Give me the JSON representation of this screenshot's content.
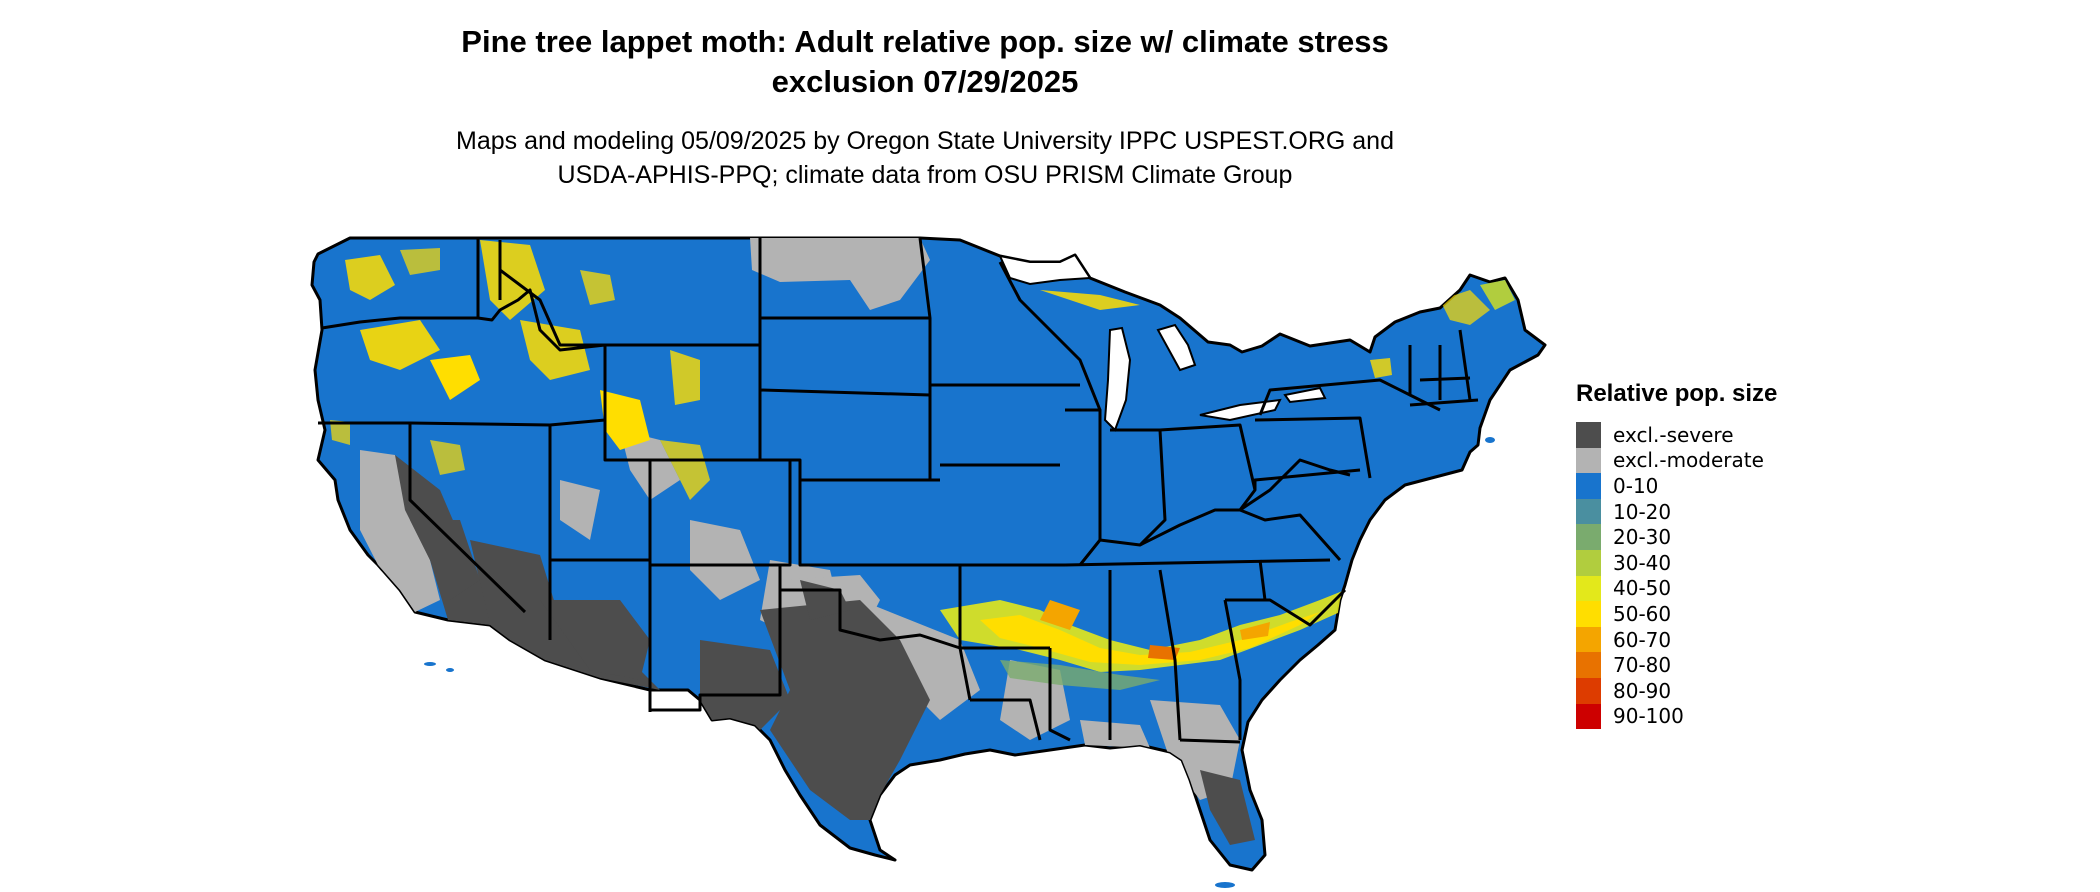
{
  "header": {
    "title_line1": "Pine tree lappet moth: Adult relative pop. size w/ climate stress",
    "title_line2": "exclusion 07/29/2025",
    "subtitle_line1": "Maps and modeling 05/09/2025 by Oregon State University IPPC USPEST.ORG and",
    "subtitle_line2": "USDA-APHIS-PPQ; climate data from OSU PRISM Climate Group"
  },
  "legend": {
    "title": "Relative pop. size",
    "items": [
      {
        "label": "excl.-severe",
        "color": "#4d4d4d"
      },
      {
        "label": "excl.-moderate",
        "color": "#b3b3b3"
      },
      {
        "label": "0-10",
        "color": "#1874cd"
      },
      {
        "label": "10-20",
        "color": "#4a8fa0"
      },
      {
        "label": "20-30",
        "color": "#7aab6e"
      },
      {
        "label": "30-40",
        "color": "#b1cd3e"
      },
      {
        "label": "40-50",
        "color": "#e3e81b"
      },
      {
        "label": "50-60",
        "color": "#ffde00"
      },
      {
        "label": "60-70",
        "color": "#f4a500"
      },
      {
        "label": "70-80",
        "color": "#e87200"
      },
      {
        "label": "80-90",
        "color": "#dd3c00"
      },
      {
        "label": "90-100",
        "color": "#cd0000"
      }
    ]
  },
  "map": {
    "region": "Contiguous United States",
    "background_class_color": "#1874cd",
    "severe_color": "#4d4d4d",
    "moderate_color": "#b3b3b3",
    "hotspot_color": "#ffde00",
    "border_color": "#000000"
  }
}
